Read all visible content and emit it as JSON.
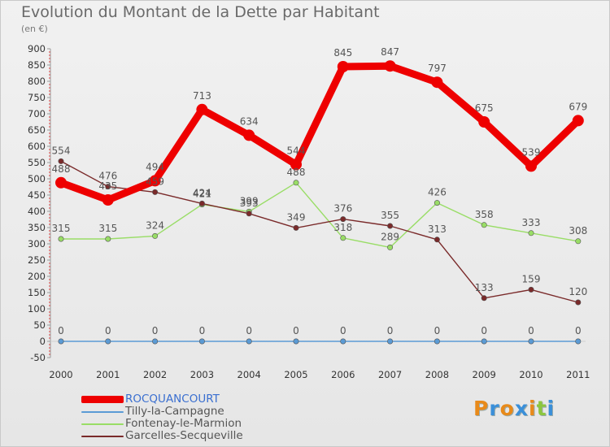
{
  "chart_data": {
    "type": "line",
    "title": "Evolution du Montant de la Dette par Habitant",
    "subtitle": "(en €)",
    "xlabel": "",
    "ylabel": "",
    "categories": [
      "2000",
      "2001",
      "2002",
      "2003",
      "2004",
      "2005",
      "2006",
      "2007",
      "2008",
      "2009",
      "2010",
      "2011"
    ],
    "ylim": [
      -50,
      900
    ],
    "yticks": [
      -50,
      0,
      50,
      100,
      150,
      200,
      250,
      300,
      350,
      400,
      450,
      500,
      550,
      600,
      650,
      700,
      750,
      800,
      850,
      900
    ],
    "grid": false,
    "legend_position": "bottom-left",
    "series": [
      {
        "name": "ROCQUANCOURT",
        "color": "#ee0000",
        "style": "thick",
        "values": [
          488,
          435,
          494,
          713,
          634,
          544,
          845,
          847,
          797,
          675,
          539,
          679
        ],
        "labels": [
          "488",
          "435",
          "494",
          "713",
          "634",
          "544",
          "845",
          "847",
          "797",
          "675",
          "539",
          "679"
        ]
      },
      {
        "name": "Tilly-la-Campagne",
        "color": "#5b9bd5",
        "style": "thin",
        "values": [
          0,
          0,
          0,
          0,
          0,
          0,
          0,
          0,
          0,
          0,
          0,
          0
        ],
        "labels": [
          "0",
          "0",
          "0",
          "0",
          "0",
          "0",
          "0",
          "0",
          "0",
          "0",
          "0",
          "0"
        ]
      },
      {
        "name": "Fontenay-le-Marmion",
        "color": "#99dd66",
        "style": "thin",
        "values": [
          315,
          315,
          324,
          421,
          399,
          488,
          318,
          289,
          426,
          358,
          333,
          308
        ],
        "labels": [
          "315",
          "315",
          "324",
          "421",
          "399",
          "488",
          "318",
          "289",
          "426",
          "358",
          "333",
          "308"
        ]
      },
      {
        "name": "Garcelles-Secqueville",
        "color": "#7a2a2a",
        "style": "thin",
        "values": [
          554,
          476,
          459,
          424,
          393,
          349,
          376,
          355,
          313,
          133,
          159,
          120
        ],
        "labels": [
          "554",
          "476",
          "459",
          "424",
          "393",
          "349",
          "376",
          "355",
          "313",
          "133",
          "159",
          "120"
        ]
      }
    ]
  },
  "brand": {
    "text": "Proxiti",
    "colors": [
      "#e88a1a",
      "#3a8fd9",
      "#e88a1a",
      "#3a8fd9",
      "#e88a1a",
      "#8cc63f",
      "#3a8fd9"
    ]
  }
}
